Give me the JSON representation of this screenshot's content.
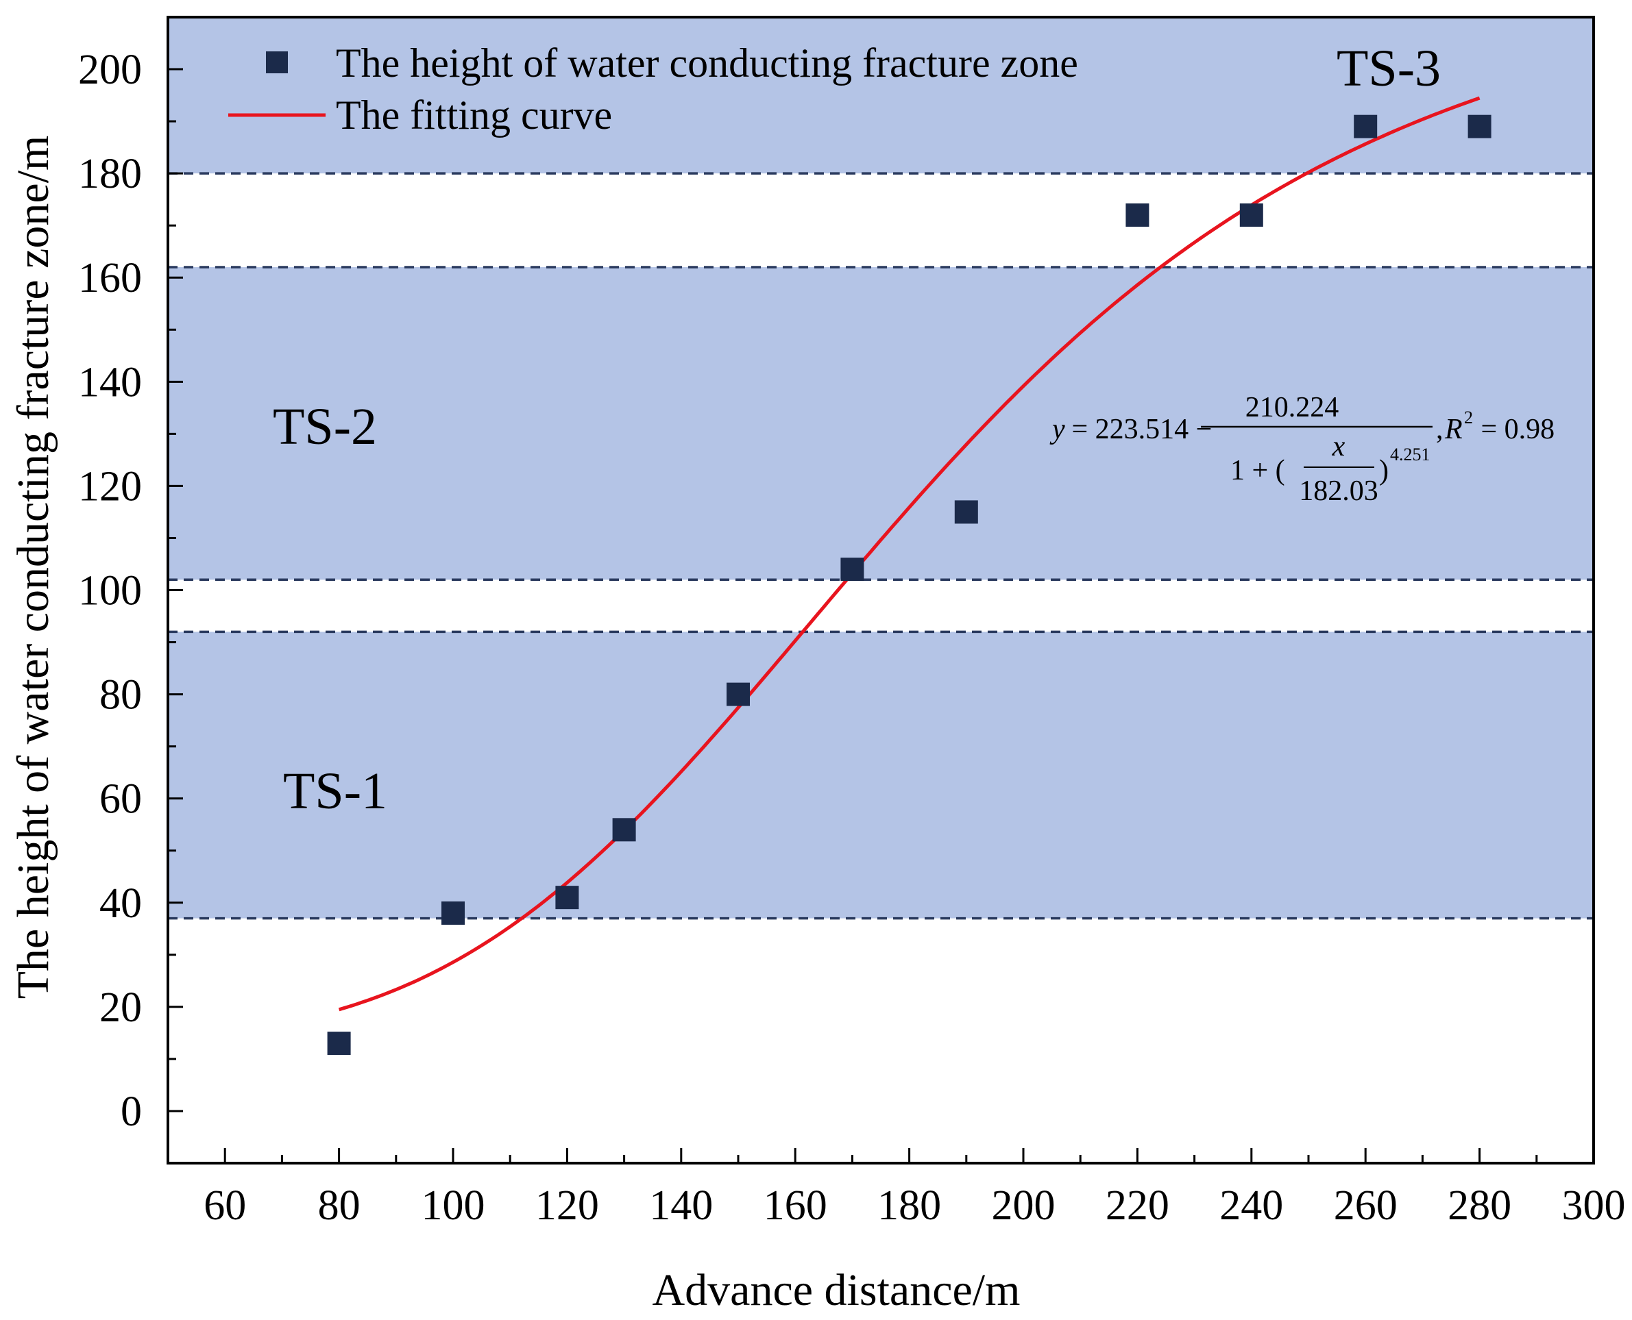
{
  "chart_data": {
    "type": "scatter",
    "title": "",
    "xlabel": "Advance distance/m",
    "ylabel": "The height of water conducting fracture zone/m",
    "xlim": [
      50,
      300
    ],
    "ylim": [
      -10,
      210
    ],
    "x_ticks": [
      60,
      80,
      100,
      120,
      140,
      160,
      180,
      200,
      220,
      240,
      260,
      280,
      300
    ],
    "y_ticks": [
      0,
      20,
      40,
      60,
      80,
      100,
      120,
      140,
      160,
      180,
      200
    ],
    "series": [
      {
        "name": "The height of water conducting fracture zone",
        "kind": "scatter",
        "marker": "square",
        "color": "#1b2a4a",
        "x": [
          80,
          100,
          120,
          130,
          150,
          170,
          190,
          220,
          240,
          260,
          280
        ],
        "y": [
          13,
          38,
          41,
          54,
          80,
          104,
          115,
          172,
          172,
          189,
          189
        ]
      },
      {
        "name": "The fitting curve",
        "kind": "line",
        "color": "#e8141e",
        "x_range": [
          80,
          280
        ],
        "model": {
          "A": 223.514,
          "B": 210.224,
          "x0": 182.03,
          "p": 4.251
        }
      }
    ],
    "zones": [
      {
        "label": "TS-1",
        "y_from": 37,
        "y_to": 92
      },
      {
        "label": "TS-2",
        "y_from": 102,
        "y_to": 162
      },
      {
        "label": "TS-3",
        "y_from": 180,
        "y_to": 210
      }
    ],
    "zone_color": "#b4c4e6",
    "zone_border_color": "#2a3a5e",
    "equation": {
      "y_var": "y",
      "eq1": " = 223.514 − ",
      "numerator": "210.224",
      "den_prefix": "1 + (",
      "x_var": "x",
      "x0": "182.03",
      "exponent": "4.251",
      "r2_r": "R",
      "r2_exp": "2",
      "r2_value": " = 0.98",
      "comma": ","
    },
    "legend_position": "top-left"
  }
}
